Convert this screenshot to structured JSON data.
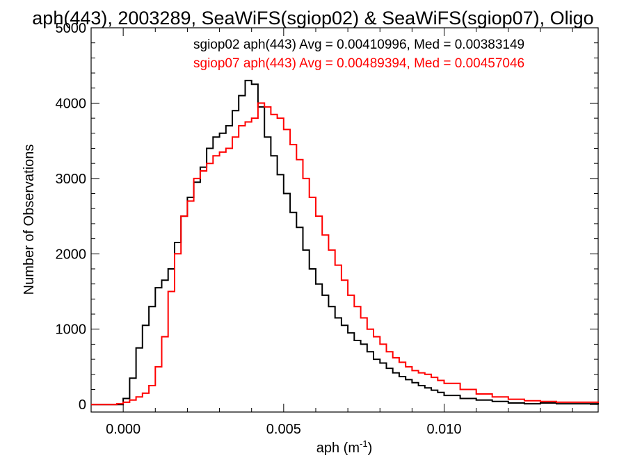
{
  "chart_data": {
    "type": "line",
    "title": "aph(443), 2003289, SeaWiFS(sgiop02) & SeaWiFS(sgiop07), Oligo",
    "xlabel": "aph (m",
    "xlabel_sup": "-1",
    "xlabel_close": ")",
    "ylabel": "Number of Observations",
    "xlim": [
      -0.001,
      0.0148
    ],
    "ylim": [
      -100,
      5000
    ],
    "xticks": [
      0.0,
      0.005,
      0.01
    ],
    "xtick_labels": [
      "0.000",
      "0.005",
      "0.010"
    ],
    "yticks": [
      0,
      1000,
      2000,
      3000,
      4000,
      5000
    ],
    "ytick_labels": [
      "0",
      "1000",
      "2000",
      "3000",
      "4000",
      "5000"
    ],
    "grid": false,
    "legend_position": "top-right",
    "series": [
      {
        "name": "sgiop02",
        "color": "#000000",
        "stats_text": "sgiop02 aph(443) Avg = 0.00410996, Med = 0.00383149",
        "x": [
          -0.001,
          -0.0002,
          0.0,
          0.0002,
          0.0004,
          0.0006,
          0.0008,
          0.001,
          0.0012,
          0.0014,
          0.0016,
          0.0018,
          0.002,
          0.0022,
          0.0024,
          0.0026,
          0.0028,
          0.003,
          0.0032,
          0.0034,
          0.0036,
          0.0038,
          0.004,
          0.0042,
          0.0044,
          0.0046,
          0.0048,
          0.005,
          0.0052,
          0.0054,
          0.0056,
          0.0058,
          0.006,
          0.0062,
          0.0064,
          0.0066,
          0.0068,
          0.007,
          0.0072,
          0.0074,
          0.0076,
          0.0078,
          0.008,
          0.0082,
          0.0084,
          0.0086,
          0.0088,
          0.009,
          0.0092,
          0.0094,
          0.0096,
          0.0098,
          0.01,
          0.0105,
          0.011,
          0.0115,
          0.012,
          0.0125,
          0.013,
          0.0135,
          0.014,
          0.0148
        ],
        "y": [
          0,
          0,
          80,
          350,
          750,
          1050,
          1300,
          1550,
          1650,
          1800,
          2150,
          2500,
          2750,
          2950,
          3150,
          3400,
          3550,
          3600,
          3700,
          3900,
          4100,
          4300,
          4250,
          3950,
          3550,
          3300,
          3050,
          2800,
          2550,
          2350,
          2050,
          1800,
          1600,
          1450,
          1300,
          1150,
          1050,
          950,
          850,
          800,
          700,
          600,
          550,
          480,
          420,
          370,
          330,
          290,
          250,
          220,
          190,
          160,
          120,
          80,
          60,
          40,
          20,
          10,
          20,
          10,
          10,
          0
        ]
      },
      {
        "name": "sgiop07",
        "color": "#ff0000",
        "stats_text": "sgiop07 aph(443) Avg = 0.00489394, Med = 0.00457046",
        "x": [
          -0.001,
          -0.0004,
          -0.0002,
          0.0,
          0.0002,
          0.0004,
          0.0006,
          0.0008,
          0.001,
          0.0012,
          0.0014,
          0.0016,
          0.0018,
          0.002,
          0.0022,
          0.0024,
          0.0026,
          0.0028,
          0.003,
          0.0032,
          0.0034,
          0.0036,
          0.0038,
          0.004,
          0.0042,
          0.0044,
          0.0046,
          0.0048,
          0.005,
          0.0052,
          0.0054,
          0.0056,
          0.0058,
          0.006,
          0.0062,
          0.0064,
          0.0066,
          0.0068,
          0.007,
          0.0072,
          0.0074,
          0.0076,
          0.0078,
          0.008,
          0.0082,
          0.0084,
          0.0086,
          0.0088,
          0.009,
          0.0092,
          0.0094,
          0.0096,
          0.0098,
          0.01,
          0.0105,
          0.011,
          0.0115,
          0.012,
          0.0125,
          0.013,
          0.0135,
          0.014,
          0.0148
        ],
        "y": [
          0,
          0,
          10,
          30,
          60,
          100,
          150,
          250,
          500,
          900,
          1500,
          2000,
          2500,
          2700,
          3000,
          3100,
          3200,
          3300,
          3350,
          3400,
          3550,
          3700,
          3750,
          3800,
          4000,
          3950,
          3850,
          3800,
          3650,
          3450,
          3250,
          3000,
          2750,
          2500,
          2250,
          2050,
          1850,
          1650,
          1450,
          1300,
          1150,
          1000,
          900,
          800,
          700,
          620,
          560,
          500,
          450,
          420,
          400,
          360,
          320,
          280,
          200,
          140,
          100,
          70,
          50,
          40,
          30,
          30,
          20
        ]
      }
    ]
  }
}
